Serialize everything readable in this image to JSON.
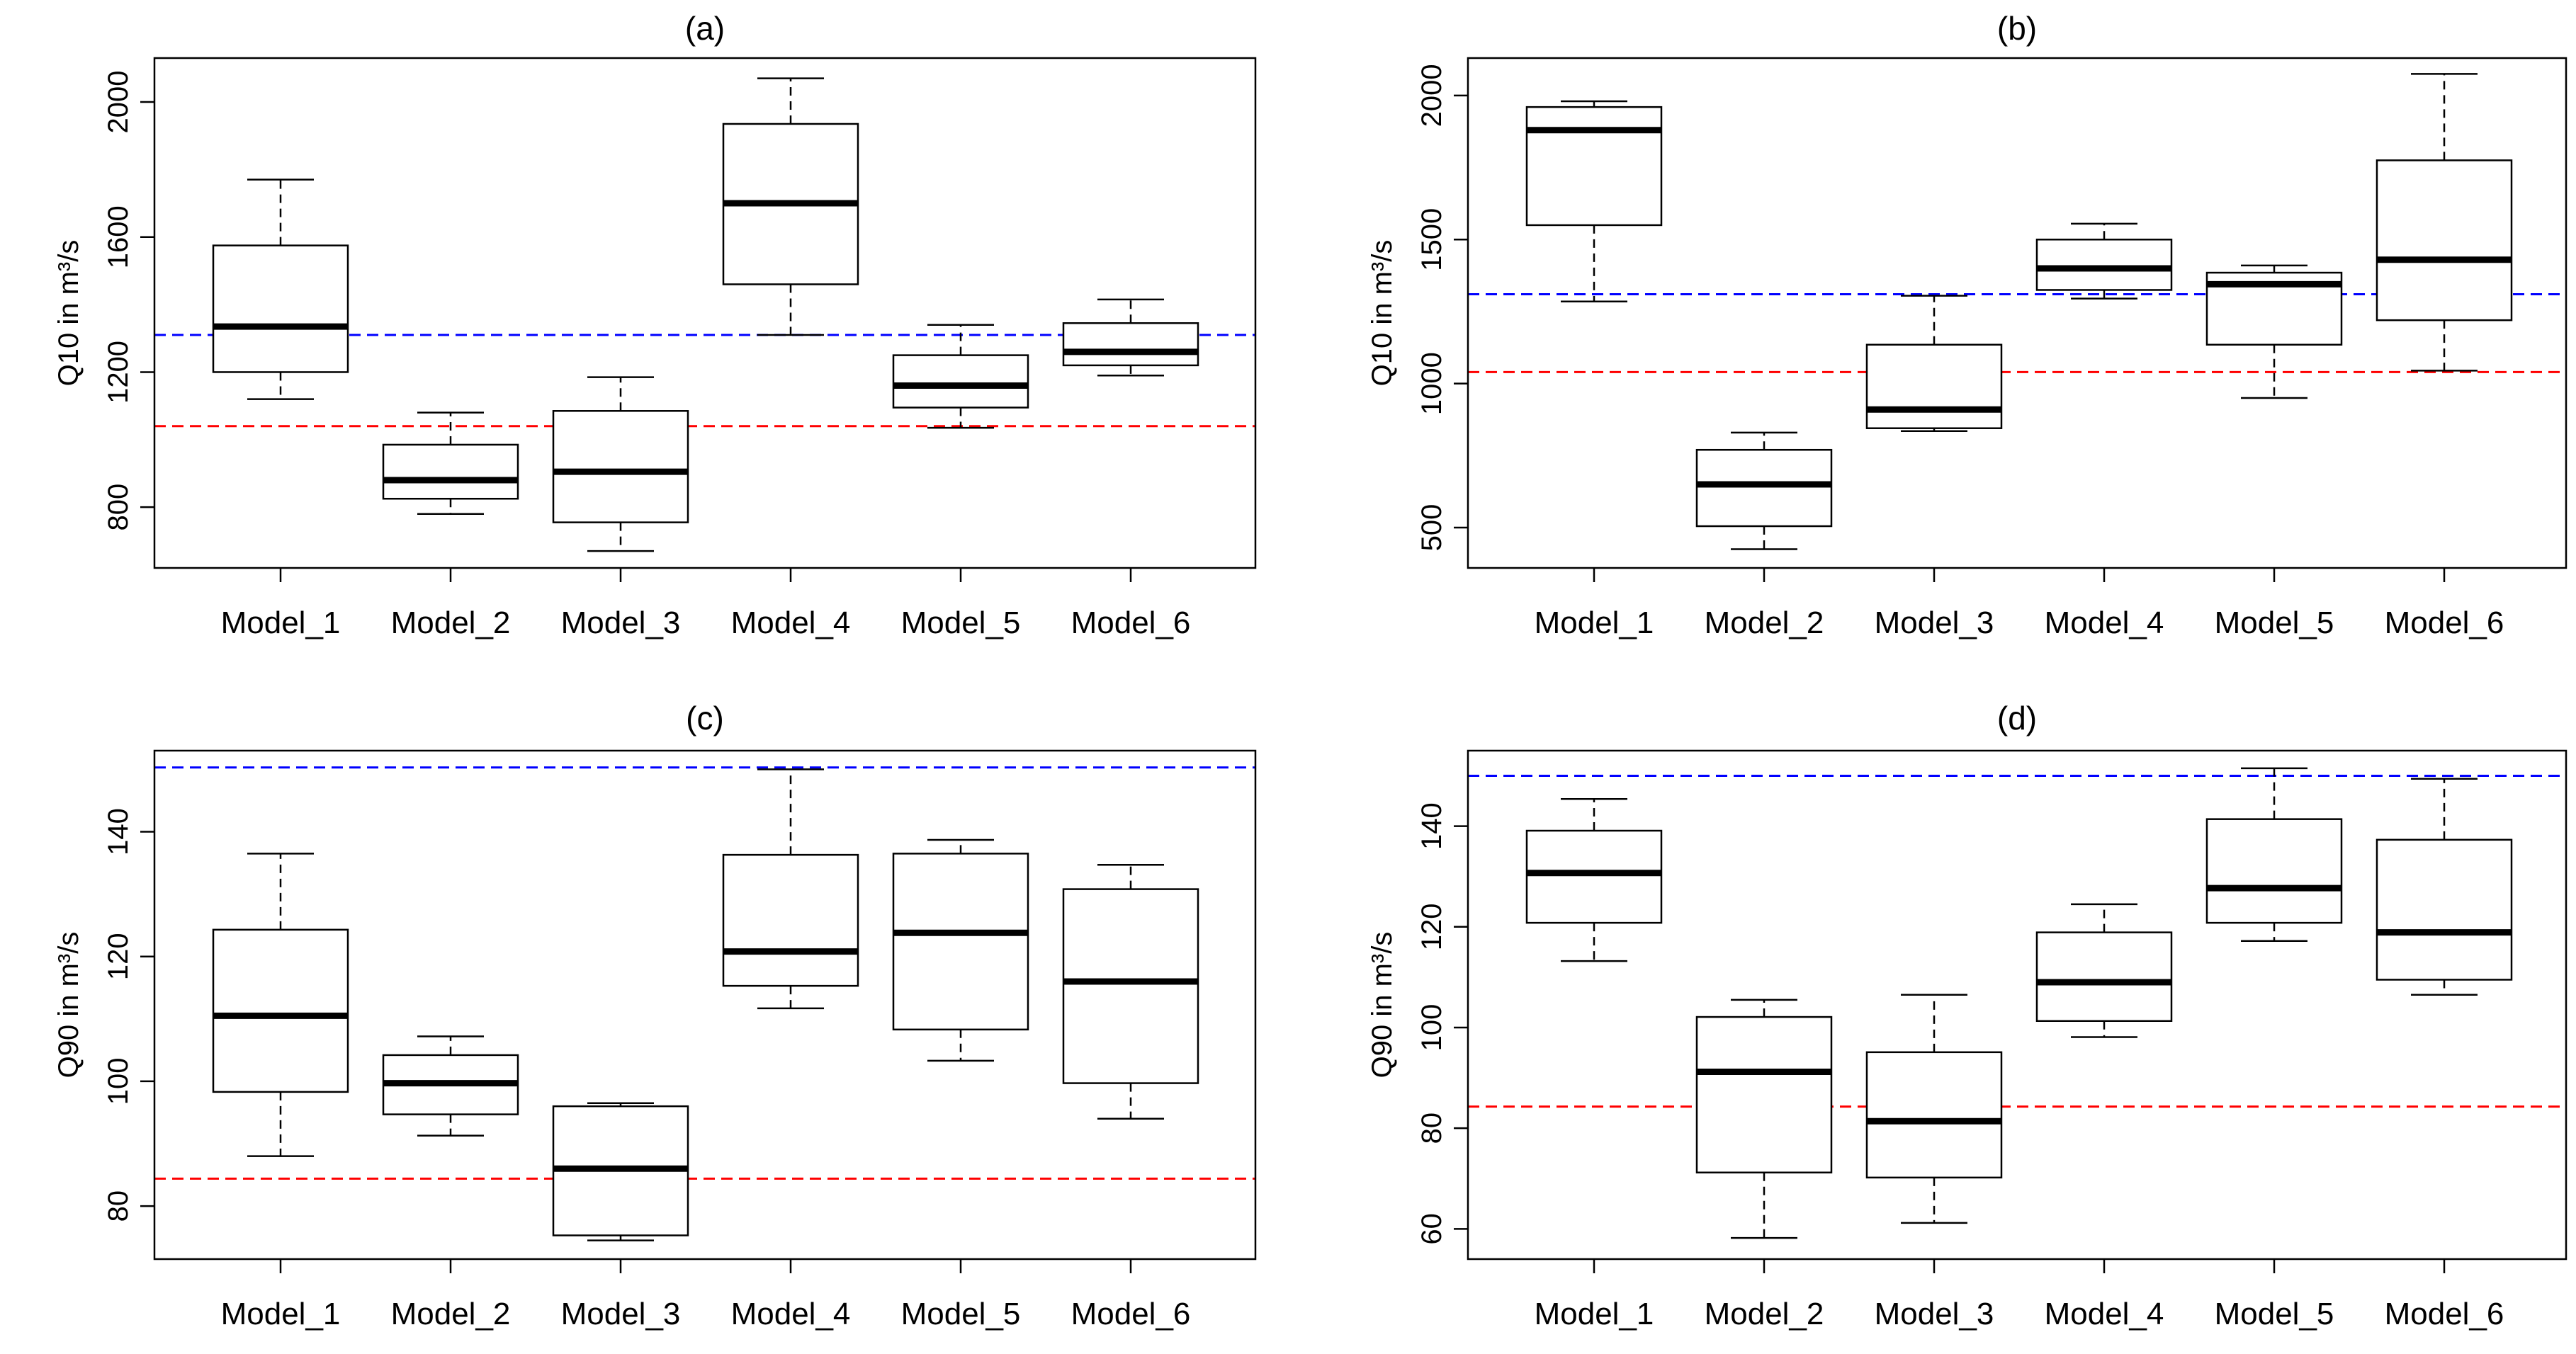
{
  "chart_data": [
    {
      "panel": "a",
      "type": "boxplot",
      "title": "(a)",
      "ylabel": "Q10 in m³/s",
      "categories": [
        "Model_1",
        "Model_2",
        "Model_3",
        "Model_4",
        "Model_5",
        "Model_6"
      ],
      "ylim": [
        620,
        2130
      ],
      "yticks": [
        800,
        1200,
        1600,
        2000
      ],
      "boxes": [
        {
          "min": 1120,
          "q1": 1200,
          "median": 1335,
          "q3": 1575,
          "max": 1770
        },
        {
          "min": 780,
          "q1": 825,
          "median": 880,
          "q3": 985,
          "max": 1080
        },
        {
          "min": 670,
          "q1": 755,
          "median": 905,
          "q3": 1085,
          "max": 1185
        },
        {
          "min": 1310,
          "q1": 1460,
          "median": 1700,
          "q3": 1935,
          "max": 2070
        },
        {
          "min": 1035,
          "q1": 1095,
          "median": 1160,
          "q3": 1250,
          "max": 1340
        },
        {
          "min": 1190,
          "q1": 1220,
          "median": 1260,
          "q3": 1345,
          "max": 1415
        }
      ],
      "reference_lines": [
        {
          "value": 1310,
          "color": "#0000ff"
        },
        {
          "value": 1040,
          "color": "#ff0000"
        }
      ]
    },
    {
      "panel": "b",
      "type": "boxplot",
      "title": "(b)",
      "ylabel": "Q10 in m³/s",
      "categories": [
        "Model_1",
        "Model_2",
        "Model_3",
        "Model_4",
        "Model_5",
        "Model_6"
      ],
      "ylim": [
        360,
        2130
      ],
      "yticks": [
        500,
        1000,
        1500,
        2000
      ],
      "boxes": [
        {
          "min": 1285,
          "q1": 1550,
          "median": 1880,
          "q3": 1960,
          "max": 1980
        },
        {
          "min": 425,
          "q1": 505,
          "median": 650,
          "q3": 770,
          "max": 830
        },
        {
          "min": 835,
          "q1": 845,
          "median": 910,
          "q3": 1135,
          "max": 1305
        },
        {
          "min": 1295,
          "q1": 1325,
          "median": 1400,
          "q3": 1500,
          "max": 1555
        },
        {
          "min": 950,
          "q1": 1135,
          "median": 1345,
          "q3": 1385,
          "max": 1410
        },
        {
          "min": 1045,
          "q1": 1220,
          "median": 1430,
          "q3": 1775,
          "max": 2075
        }
      ],
      "reference_lines": [
        {
          "value": 1310,
          "color": "#0000ff"
        },
        {
          "value": 1040,
          "color": "#ff0000"
        }
      ]
    },
    {
      "panel": "c",
      "type": "boxplot",
      "title": "(c)",
      "ylabel": "Q90 in m³/s",
      "categories": [
        "Model_1",
        "Model_2",
        "Model_3",
        "Model_4",
        "Model_5",
        "Model_6"
      ],
      "ylim": [
        71.5,
        153
      ],
      "yticks": [
        80,
        100,
        120,
        140
      ],
      "boxes": [
        {
          "min": 88,
          "q1": 98.3,
          "median": 110.5,
          "q3": 124.3,
          "max": 136.5
        },
        {
          "min": 91.3,
          "q1": 94.7,
          "median": 99.7,
          "q3": 104.2,
          "max": 107.2
        },
        {
          "min": 74.5,
          "q1": 75.3,
          "median": 86,
          "q3": 96,
          "max": 96.5
        },
        {
          "min": 111.7,
          "q1": 115.3,
          "median": 120.8,
          "q3": 136.3,
          "max": 150
        },
        {
          "min": 103.3,
          "q1": 108.3,
          "median": 123.8,
          "q3": 136.5,
          "max": 138.7
        },
        {
          "min": 94,
          "q1": 99.7,
          "median": 116,
          "q3": 130.8,
          "max": 134.7
        }
      ],
      "reference_lines": [
        {
          "value": 150.3,
          "color": "#0000ff"
        },
        {
          "value": 84.4,
          "color": "#ff0000"
        }
      ]
    },
    {
      "panel": "d",
      "type": "boxplot",
      "title": "(d)",
      "ylabel": "Q90 in m³/s",
      "categories": [
        "Model_1",
        "Model_2",
        "Model_3",
        "Model_4",
        "Model_5",
        "Model_6"
      ],
      "ylim": [
        54,
        155
      ],
      "yticks": [
        60,
        80,
        100,
        120,
        140
      ],
      "boxes": [
        {
          "min": 113.2,
          "q1": 120.8,
          "median": 130.7,
          "q3": 139.1,
          "max": 145.4
        },
        {
          "min": 58.2,
          "q1": 71.2,
          "median": 91.2,
          "q3": 102.1,
          "max": 105.5
        },
        {
          "min": 61.2,
          "q1": 70.2,
          "median": 81.4,
          "q3": 95.1,
          "max": 106.5
        },
        {
          "min": 98.1,
          "q1": 101.3,
          "median": 109,
          "q3": 118.9,
          "max": 124.5
        },
        {
          "min": 117.2,
          "q1": 120.8,
          "median": 127.7,
          "q3": 141.4,
          "max": 151.5
        },
        {
          "min": 106.5,
          "q1": 109.5,
          "median": 118.9,
          "q3": 137.3,
          "max": 149.4
        }
      ],
      "reference_lines": [
        {
          "value": 150,
          "color": "#0000ff"
        },
        {
          "value": 84.3,
          "color": "#ff0000"
        }
      ]
    }
  ]
}
